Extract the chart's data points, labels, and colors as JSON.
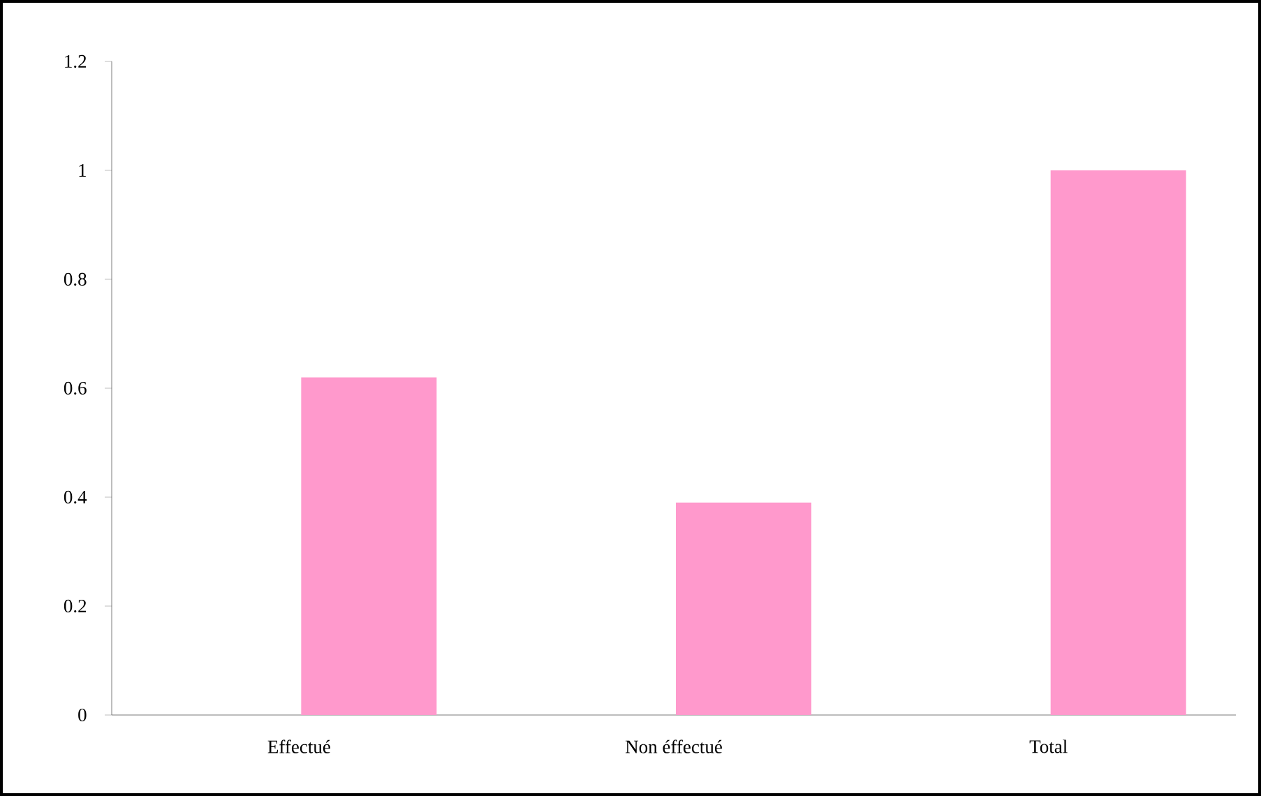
{
  "chart_data": {
    "type": "bar",
    "categories": [
      "Effectué",
      "Non éffectué",
      "Total"
    ],
    "values": [
      0.62,
      0.39,
      1
    ],
    "color": "#ff99cc",
    "ylim": [
      0,
      1.2
    ],
    "yticks": [
      0,
      0.2,
      0.4,
      0.6,
      0.8,
      1,
      1.2
    ]
  }
}
